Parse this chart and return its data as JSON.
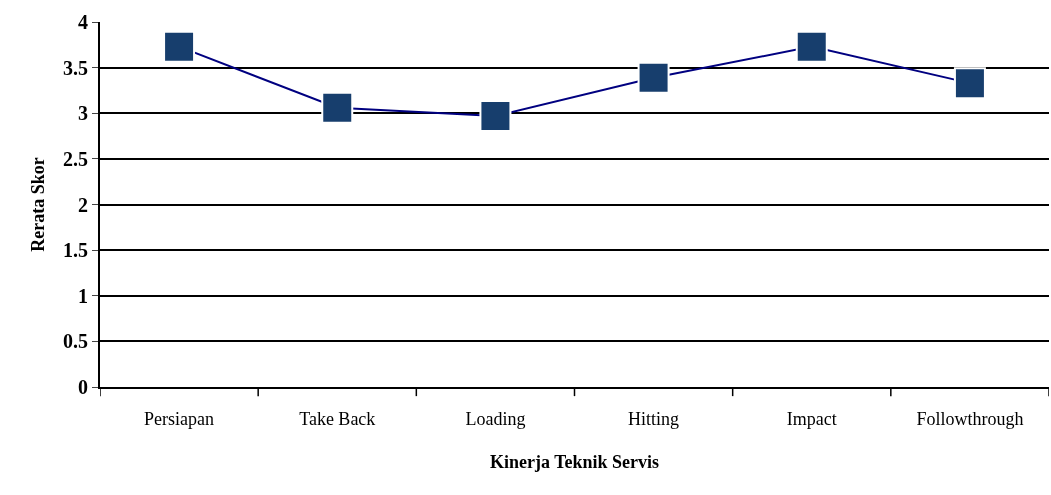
{
  "chart_data": {
    "type": "line",
    "xlabel": "Kinerja Teknik Servis",
    "ylabel": "Rerata Skor",
    "categories": [
      "Persiapan",
      "Take Back",
      "Loading",
      "Hitting",
      "Impact",
      "Followthrough"
    ],
    "series": [
      {
        "color": "#000080",
        "values": [
          3.73,
          3.06,
          2.97,
          3.39,
          3.73,
          3.33
        ]
      }
    ],
    "ylim": [
      0,
      4
    ],
    "yticks": [
      0,
      0.5,
      1,
      1.5,
      2,
      2.5,
      3,
      3.5,
      4
    ],
    "grid": "y",
    "legend": false,
    "marker": "square",
    "line_style": "solid"
  }
}
